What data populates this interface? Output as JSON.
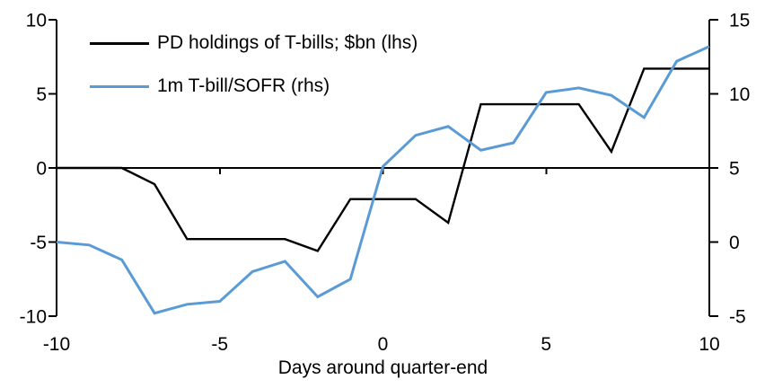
{
  "chart_data": {
    "type": "line",
    "title": "",
    "xlabel": "Days around quarter-end",
    "x": [
      -10,
      -9,
      -8,
      -7,
      -6,
      -5,
      -4,
      -3,
      -2,
      -1,
      0,
      1,
      2,
      3,
      4,
      5,
      6,
      7,
      8,
      9,
      10
    ],
    "series": [
      {
        "name": "PD holdings of T-bills; $bn (lhs)",
        "axis": "lhs",
        "color": "#000000",
        "values": [
          0.0,
          0.0,
          0.0,
          -1.1,
          -4.8,
          -4.8,
          -4.8,
          -4.8,
          -5.6,
          -2.1,
          -2.1,
          -2.1,
          -3.7,
          4.3,
          4.3,
          4.3,
          4.3,
          1.1,
          6.7,
          6.7,
          6.7
        ]
      },
      {
        "name": "1m T-bill/SOFR (rhs)",
        "axis": "rhs",
        "color": "#5B9BD5",
        "values": [
          0.0,
          -0.2,
          -1.2,
          -4.8,
          -4.2,
          -4.0,
          -2.0,
          -1.3,
          -3.7,
          -2.5,
          5.1,
          7.2,
          7.8,
          6.2,
          6.7,
          10.1,
          10.4,
          9.9,
          8.4,
          12.2,
          13.2
        ]
      }
    ],
    "left_axis": {
      "range": [
        -10,
        10
      ],
      "ticks": [
        10,
        5,
        0,
        -5,
        -10
      ]
    },
    "right_axis": {
      "range": [
        -5,
        15
      ],
      "ticks": [
        15,
        10,
        5,
        0,
        -5
      ]
    },
    "x_axis": {
      "range": [
        -10,
        10
      ],
      "ticks": [
        -10,
        -5,
        0,
        5,
        10
      ]
    },
    "legend_position": "top-left",
    "grid": "none"
  },
  "colors": {
    "background": "#FFFFFF",
    "axis": "#000000",
    "series_pd_holdings": "#000000",
    "series_tbill_sofr": "#5B9BD5"
  }
}
